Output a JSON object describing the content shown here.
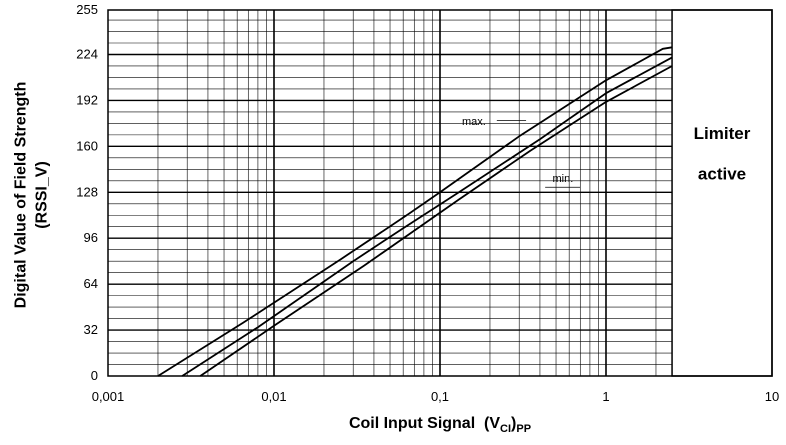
{
  "chart_data": {
    "type": "line",
    "xscale": "log",
    "xlim": [
      0.001,
      10
    ],
    "ylim": [
      0,
      255
    ],
    "xticks": [
      "0,001",
      "0,01",
      "0,1",
      "1",
      "10"
    ],
    "yticks": [
      "0",
      "32",
      "64",
      "96",
      "128",
      "160",
      "192",
      "224",
      "255"
    ],
    "ylabel_line1": "Digital Value of Field Strength",
    "ylabel_line2": "(RSSI_V)",
    "xlabel": {
      "main": "Coil Input Signal",
      "var": "(V",
      "sub_var": "CI",
      "close": ")",
      "sub_pp": "PP"
    },
    "grid": true,
    "series": [
      {
        "name": "max.",
        "x": [
          0.002,
          0.0065,
          0.025,
          0.065,
          0.1,
          0.3,
          1,
          2.2,
          2.5
        ],
        "y": [
          0,
          37,
          81,
          113,
          128,
          167,
          206,
          228,
          229
        ]
      },
      {
        "x": [
          0.0028,
          0.008,
          0.03,
          0.06,
          0.13,
          0.4,
          1,
          2.5
        ],
        "y": [
          0,
          34,
          80,
          103,
          128,
          165,
          197,
          222
        ]
      },
      {
        "name": "min.",
        "x": [
          0.0036,
          0.01,
          0.035,
          0.13,
          0.35,
          1,
          2.5
        ],
        "y": [
          0,
          35,
          77,
          123,
          157,
          191,
          216
        ]
      }
    ],
    "annotations": [
      "max.",
      "min."
    ],
    "region": {
      "label_line1": "Limiter",
      "label_line2": "active",
      "x_from": 2.5,
      "x_to": 10
    }
  }
}
